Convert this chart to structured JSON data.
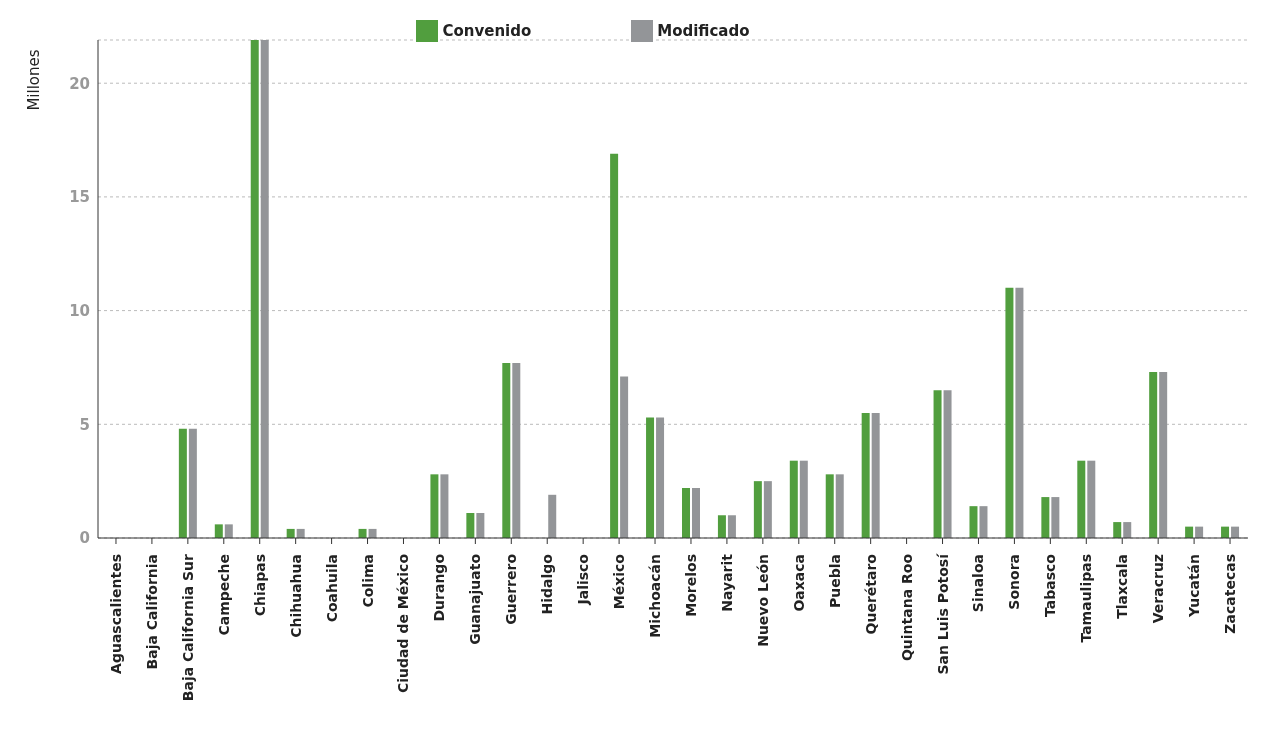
{
  "chart_data": {
    "type": "bar",
    "ylabel": "Millones",
    "categories": [
      "Aguascalientes",
      "Baja California",
      "Baja California Sur",
      "Campeche",
      "Chiapas",
      "Chihuahua",
      "Coahuila",
      "Colima",
      "Ciudad de México",
      "Durango",
      "Guanajuato",
      "Guerrero",
      "Hidalgo",
      "Jalisco",
      "México",
      "Michoacán",
      "Morelos",
      "Nayarit",
      "Nuevo León",
      "Oaxaca",
      "Puebla",
      "Querétaro",
      "Quintana Roo",
      "San Luis Potosí",
      "Sinaloa",
      "Sonora",
      "Tabasco",
      "Tamaulipas",
      "Tlaxcala",
      "Veracruz",
      "Yucatán",
      "Zacatecas"
    ],
    "series": [
      {
        "name": "Convenido",
        "color": "#519e3e",
        "values": [
          0,
          0,
          4.8,
          0.6,
          21.9,
          0.4,
          0,
          0.4,
          0,
          2.8,
          1.1,
          7.7,
          0,
          0,
          16.9,
          5.3,
          2.2,
          1.0,
          2.5,
          3.4,
          2.8,
          5.5,
          0,
          6.5,
          1.4,
          11.0,
          1.8,
          3.4,
          0.7,
          7.3,
          0.5,
          0.5
        ]
      },
      {
        "name": "Modificado",
        "color": "#939598",
        "values": [
          0,
          0,
          4.8,
          0.6,
          21.9,
          0.4,
          0,
          0.4,
          0,
          2.8,
          1.1,
          7.7,
          1.9,
          0,
          7.1,
          5.3,
          2.2,
          1.0,
          2.5,
          3.4,
          2.8,
          5.5,
          0,
          6.5,
          1.4,
          11.0,
          1.8,
          3.4,
          0.7,
          7.3,
          0.5,
          0.5
        ]
      }
    ],
    "ylim": [
      0,
      21.9
    ],
    "yticks": [
      0,
      5,
      10,
      15,
      20
    ],
    "grid": "y",
    "legend": "top"
  }
}
